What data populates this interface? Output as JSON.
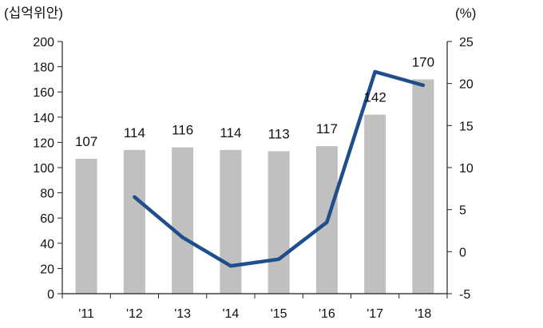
{
  "chart_data": {
    "type": "bar",
    "categories": [
      "'11",
      "'12",
      "'13",
      "'14",
      "'15",
      "'16",
      "'17",
      "'18"
    ],
    "left_unit": "(십억위안)",
    "right_unit": "(%)",
    "left_ticks": [
      "0",
      "20",
      "40",
      "60",
      "80",
      "100",
      "120",
      "140",
      "160",
      "180",
      "200"
    ],
    "right_ticks": [
      "-5",
      "0",
      "5",
      "10",
      "15",
      "20",
      "25"
    ],
    "ylim": [
      0,
      200
    ],
    "y2lim": [
      -5,
      25
    ],
    "series": [
      {
        "type": "bar",
        "axis": "left",
        "color": "#c0c0c0",
        "values": [
          107,
          114,
          116,
          114,
          113,
          117,
          142,
          170
        ],
        "labels": [
          "107",
          "114",
          "116",
          "114",
          "113",
          "117",
          "142",
          "170"
        ]
      },
      {
        "type": "line",
        "axis": "right",
        "color": "#1f4e8c",
        "values": [
          null,
          6.5,
          1.7,
          -1.7,
          -0.9,
          3.5,
          21.4,
          19.8
        ]
      }
    ]
  }
}
